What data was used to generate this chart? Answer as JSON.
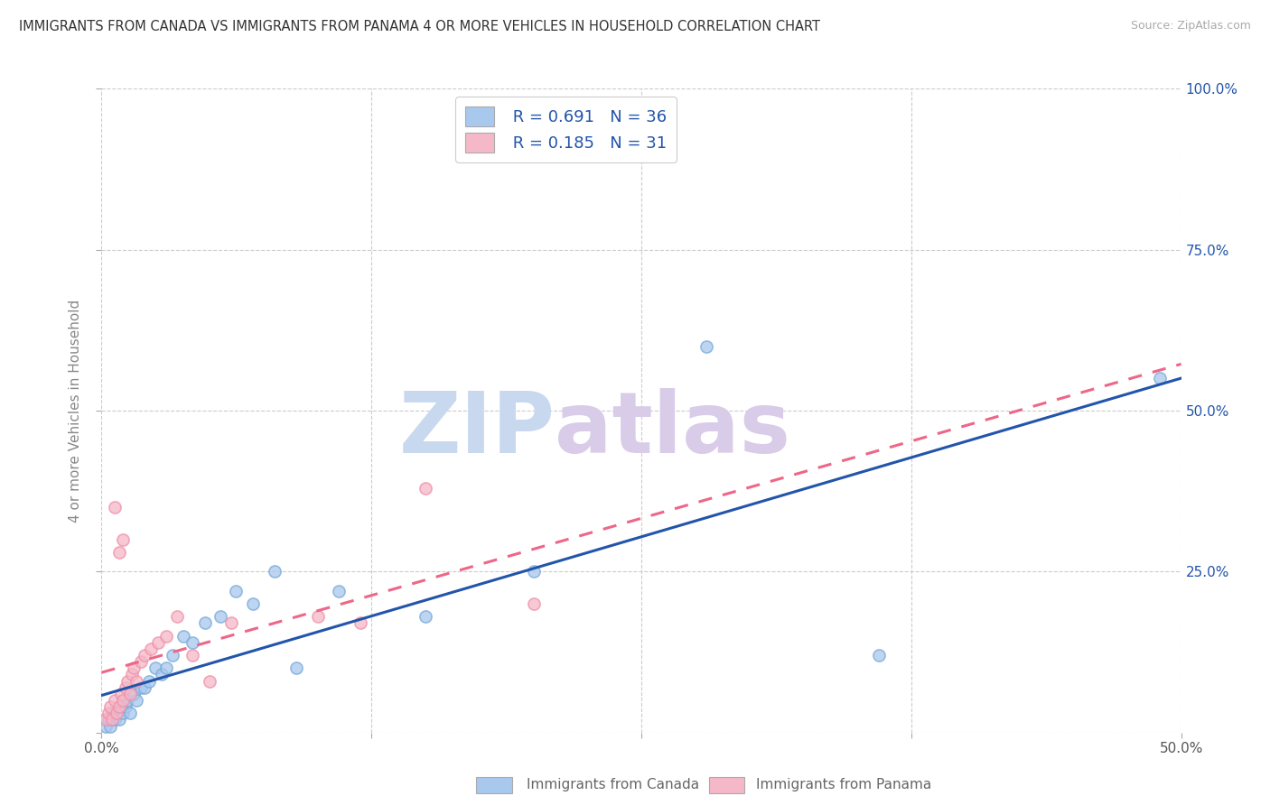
{
  "title": "IMMIGRANTS FROM CANADA VS IMMIGRANTS FROM PANAMA 4 OR MORE VEHICLES IN HOUSEHOLD CORRELATION CHART",
  "source": "Source: ZipAtlas.com",
  "ylabel": "4 or more Vehicles in Household",
  "legend_canada": "Immigrants from Canada",
  "legend_panama": "Immigrants from Panama",
  "legend_r_canada": "R = 0.691",
  "legend_n_canada": "N = 36",
  "legend_r_panama": "R = 0.185",
  "legend_n_panama": "N = 31",
  "xlim": [
    0.0,
    0.5
  ],
  "ylim": [
    0.0,
    1.0
  ],
  "xtick_labels": [
    "0.0%",
    "",
    "",
    "",
    "50.0%"
  ],
  "xtick_vals": [
    0.0,
    0.125,
    0.25,
    0.375,
    0.5
  ],
  "ytick_labels": [
    "",
    "25.0%",
    "50.0%",
    "75.0%",
    "100.0%"
  ],
  "ytick_vals": [
    0.0,
    0.25,
    0.5,
    0.75,
    1.0
  ],
  "canada_x": [
    0.002,
    0.003,
    0.004,
    0.005,
    0.005,
    0.006,
    0.007,
    0.008,
    0.009,
    0.01,
    0.011,
    0.012,
    0.013,
    0.015,
    0.016,
    0.018,
    0.02,
    0.022,
    0.025,
    0.028,
    0.03,
    0.033,
    0.038,
    0.042,
    0.048,
    0.055,
    0.062,
    0.07,
    0.08,
    0.09,
    0.11,
    0.15,
    0.2,
    0.28,
    0.36,
    0.49
  ],
  "canada_y": [
    0.01,
    0.02,
    0.01,
    0.02,
    0.03,
    0.02,
    0.03,
    0.02,
    0.04,
    0.03,
    0.04,
    0.05,
    0.03,
    0.06,
    0.05,
    0.07,
    0.07,
    0.08,
    0.1,
    0.09,
    0.1,
    0.12,
    0.15,
    0.14,
    0.17,
    0.18,
    0.22,
    0.2,
    0.25,
    0.1,
    0.22,
    0.18,
    0.25,
    0.6,
    0.12,
    0.55
  ],
  "panama_x": [
    0.002,
    0.003,
    0.004,
    0.005,
    0.006,
    0.007,
    0.008,
    0.009,
    0.01,
    0.011,
    0.012,
    0.013,
    0.014,
    0.015,
    0.016,
    0.018,
    0.02,
    0.023,
    0.026,
    0.03,
    0.035,
    0.042,
    0.05,
    0.06,
    0.1,
    0.12,
    0.15,
    0.2,
    0.01,
    0.008,
    0.006
  ],
  "panama_y": [
    0.02,
    0.03,
    0.04,
    0.02,
    0.05,
    0.03,
    0.04,
    0.06,
    0.05,
    0.07,
    0.08,
    0.06,
    0.09,
    0.1,
    0.08,
    0.11,
    0.12,
    0.13,
    0.14,
    0.15,
    0.18,
    0.12,
    0.08,
    0.17,
    0.18,
    0.17,
    0.38,
    0.2,
    0.3,
    0.28,
    0.35
  ],
  "canada_color": "#a8c8ee",
  "panama_color": "#f5b8c8",
  "canada_line_color": "#2255aa",
  "panama_line_color": "#ee6688",
  "canada_edge_color": "#7aaad8",
  "panama_edge_color": "#f090a8",
  "watermark_zip": "ZIP",
  "watermark_atlas": "atlas",
  "watermark_color_zip": "#c8d8ee",
  "watermark_color_atlas": "#d8cce8",
  "background_color": "#ffffff",
  "grid_color": "#cccccc",
  "title_color": "#333333",
  "axis_label_color": "#888888",
  "right_tick_color": "#2255aa",
  "legend_text_color": "#2255aa",
  "bottom_legend_color": "#666666"
}
